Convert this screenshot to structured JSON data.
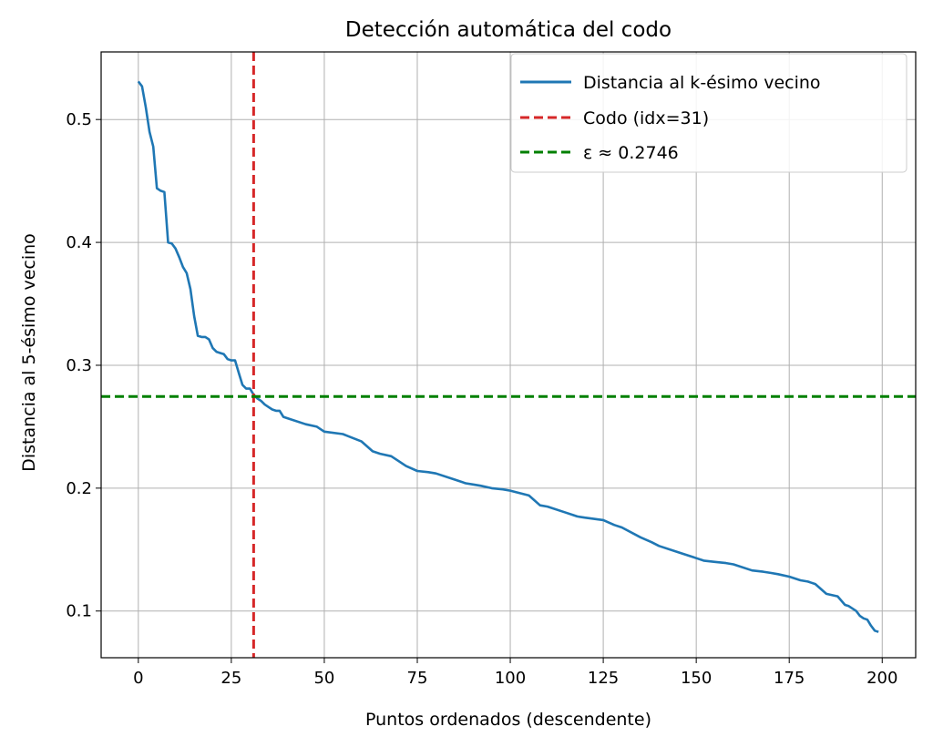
{
  "chart_data": {
    "type": "line",
    "title": "Detección automática del codo",
    "xlabel": "Puntos ordenados (descendente)",
    "ylabel": "Distancia al 5-ésimo vecino",
    "xlim": [
      -10,
      209
    ],
    "ylim": [
      0.062,
      0.555
    ],
    "xticks": [
      0,
      25,
      50,
      75,
      100,
      125,
      150,
      175,
      200
    ],
    "yticks": [
      0.1,
      0.2,
      0.3,
      0.4,
      0.5
    ],
    "xtick_labels": [
      "0",
      "25",
      "50",
      "75",
      "100",
      "125",
      "150",
      "175",
      "200"
    ],
    "ytick_labels": [
      "0.1",
      "0.2",
      "0.3",
      "0.4",
      "0.5"
    ],
    "grid": true,
    "legend_position": "top-right",
    "series": [
      {
        "name": "Distancia al k-ésimo vecino",
        "color": "#1f77b4",
        "style": "solid",
        "x": [
          0,
          1,
          2,
          3,
          4,
          5,
          6,
          7,
          8,
          9,
          10,
          11,
          12,
          13,
          14,
          15,
          16,
          17,
          18,
          19,
          20,
          21,
          22,
          23,
          24,
          25,
          26,
          27,
          28,
          29,
          30,
          31,
          32,
          33,
          34,
          35,
          36,
          37,
          38,
          39,
          40,
          45,
          48,
          50,
          55,
          60,
          63,
          65,
          68,
          70,
          72,
          75,
          78,
          80,
          85,
          88,
          90,
          92,
          95,
          98,
          100,
          105,
          108,
          110,
          115,
          117,
          118,
          120,
          125,
          128,
          130,
          135,
          138,
          140,
          145,
          148,
          150,
          152,
          155,
          158,
          160,
          165,
          168,
          170,
          172,
          175,
          178,
          180,
          182,
          185,
          188,
          190,
          191,
          193,
          194,
          195,
          196,
          197,
          198,
          199
        ],
        "y": [
          0.531,
          0.527,
          0.51,
          0.49,
          0.478,
          0.444,
          0.442,
          0.441,
          0.4,
          0.399,
          0.395,
          0.388,
          0.38,
          0.375,
          0.362,
          0.34,
          0.324,
          0.323,
          0.323,
          0.321,
          0.314,
          0.311,
          0.31,
          0.309,
          0.305,
          0.304,
          0.304,
          0.294,
          0.284,
          0.281,
          0.281,
          0.276,
          0.273,
          0.271,
          0.268,
          0.266,
          0.264,
          0.263,
          0.263,
          0.258,
          0.257,
          0.252,
          0.25,
          0.246,
          0.244,
          0.238,
          0.23,
          0.228,
          0.226,
          0.222,
          0.218,
          0.214,
          0.213,
          0.212,
          0.207,
          0.204,
          0.203,
          0.202,
          0.2,
          0.199,
          0.198,
          0.194,
          0.186,
          0.185,
          0.18,
          0.178,
          0.177,
          0.176,
          0.174,
          0.17,
          0.168,
          0.16,
          0.156,
          0.153,
          0.148,
          0.145,
          0.143,
          0.141,
          0.14,
          0.139,
          0.138,
          0.133,
          0.132,
          0.131,
          0.13,
          0.128,
          0.125,
          0.124,
          0.122,
          0.114,
          0.112,
          0.105,
          0.104,
          0.1,
          0.096,
          0.094,
          0.093,
          0.088,
          0.084,
          0.083
        ]
      }
    ],
    "reference_lines": [
      {
        "name": "Codo (idx=31)",
        "orientation": "vertical",
        "value": 31,
        "color": "#d62728",
        "style": "dashed"
      },
      {
        "name": "ε ≈ 0.2746",
        "orientation": "horizontal",
        "value": 0.2746,
        "color": "#008000",
        "style": "dashed"
      }
    ]
  }
}
